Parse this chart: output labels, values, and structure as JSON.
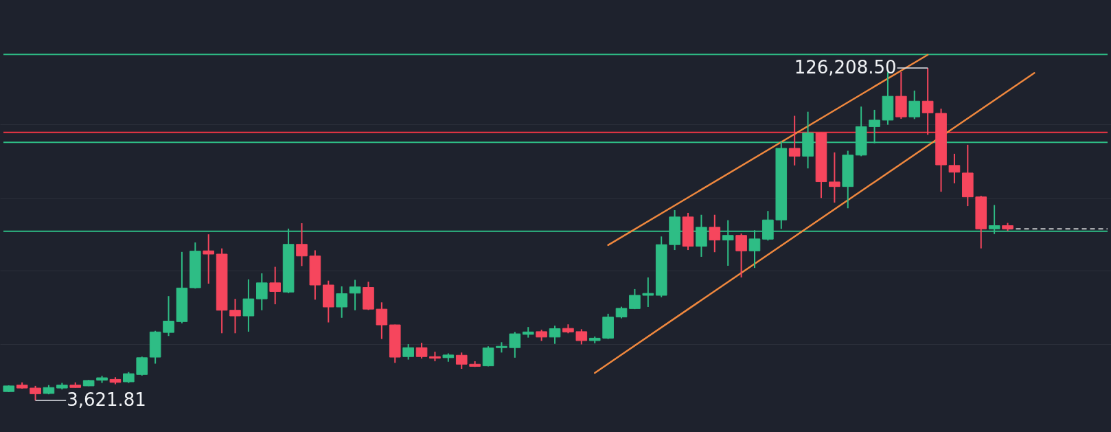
{
  "chart_data": {
    "type": "candlestick",
    "categories": [
      null,
      null,
      null,
      null,
      null,
      null,
      null,
      null,
      null,
      null,
      null,
      null,
      null,
      null,
      null,
      null,
      null,
      null,
      null,
      null,
      null,
      null,
      null,
      null,
      null,
      null,
      null,
      null,
      null,
      null,
      null,
      null,
      null,
      null,
      null,
      null,
      null,
      null,
      null,
      null,
      null,
      null,
      null,
      null,
      null,
      null,
      null,
      null,
      null,
      null,
      null,
      null,
      null,
      null,
      null,
      null,
      null,
      null,
      null,
      null,
      null,
      null,
      null,
      null,
      null,
      null,
      null,
      null,
      null,
      null,
      null,
      null,
      null,
      null,
      null,
      null,
      null,
      null,
      null,
      null,
      null,
      null,
      null
    ],
    "ohlc": [
      [
        6900,
        9200,
        6700,
        9000
      ],
      [
        9300,
        10300,
        8000,
        8200
      ],
      [
        8200,
        9000,
        3621.81,
        6100
      ],
      [
        6200,
        9300,
        5900,
        8400
      ],
      [
        8200,
        10100,
        7700,
        9300
      ],
      [
        9300,
        10300,
        8300,
        8400
      ],
      [
        9000,
        11200,
        8900,
        11000
      ],
      [
        11100,
        12700,
        10100,
        12000
      ],
      [
        11400,
        12200,
        9600,
        10300
      ],
      [
        10500,
        14100,
        10100,
        13500
      ],
      [
        13200,
        19800,
        12800,
        19400
      ],
      [
        19600,
        29300,
        17200,
        28900
      ],
      [
        28700,
        42100,
        27400,
        32900
      ],
      [
        32700,
        58400,
        32100,
        45100
      ],
      [
        45200,
        61900,
        44900,
        58700
      ],
      [
        58800,
        64900,
        46700,
        57600
      ],
      [
        57600,
        59700,
        28400,
        36900
      ],
      [
        36900,
        41100,
        28400,
        34800
      ],
      [
        34800,
        48300,
        29000,
        41100
      ],
      [
        41100,
        50500,
        36900,
        47000
      ],
      [
        47000,
        52900,
        39100,
        43800
      ],
      [
        43600,
        67000,
        43200,
        61200
      ],
      [
        61200,
        69000,
        53200,
        56900
      ],
      [
        56900,
        59000,
        40800,
        46200
      ],
      [
        46200,
        47800,
        32400,
        38100
      ],
      [
        38100,
        45700,
        34100,
        43000
      ],
      [
        43200,
        48100,
        36900,
        45500
      ],
      [
        45300,
        47400,
        37000,
        37300
      ],
      [
        37300,
        39800,
        26300,
        31500
      ],
      [
        31500,
        31600,
        17500,
        19600
      ],
      [
        19800,
        24400,
        18700,
        23100
      ],
      [
        23100,
        24900,
        19100,
        19800
      ],
      [
        19800,
        21600,
        18100,
        19200
      ],
      [
        19400,
        21000,
        17900,
        20400
      ],
      [
        20300,
        21300,
        15300,
        17000
      ],
      [
        17000,
        18100,
        16000,
        16200
      ],
      [
        16400,
        23600,
        16200,
        23000
      ],
      [
        23100,
        25100,
        21300,
        23600
      ],
      [
        23100,
        28900,
        19400,
        28200
      ],
      [
        28000,
        30700,
        26800,
        28900
      ],
      [
        29000,
        29700,
        25600,
        27000
      ],
      [
        27000,
        31200,
        24500,
        30100
      ],
      [
        30200,
        31700,
        28400,
        28900
      ],
      [
        29000,
        29900,
        24300,
        25700
      ],
      [
        25700,
        27200,
        24700,
        26600
      ],
      [
        26600,
        35600,
        26300,
        34400
      ],
      [
        34400,
        38200,
        33900,
        37600
      ],
      [
        37500,
        44700,
        37300,
        42400
      ],
      [
        42400,
        49000,
        38100,
        43100
      ],
      [
        42400,
        64100,
        41700,
        61100
      ],
      [
        61100,
        73800,
        59100,
        71300
      ],
      [
        71300,
        72800,
        59100,
        60500
      ],
      [
        60500,
        72100,
        56600,
        67500
      ],
      [
        67500,
        72100,
        58300,
        62800
      ],
      [
        62800,
        70100,
        53300,
        64500
      ],
      [
        64500,
        65200,
        49000,
        58800
      ],
      [
        58800,
        66400,
        52500,
        63200
      ],
      [
        63100,
        73500,
        62600,
        70200
      ],
      [
        70200,
        99400,
        66900,
        96600
      ],
      [
        96600,
        108600,
        90300,
        93700
      ],
      [
        93700,
        110100,
        89200,
        102300
      ],
      [
        102300,
        102500,
        78300,
        84300
      ],
      [
        84200,
        95100,
        76600,
        82500
      ],
      [
        82500,
        95700,
        74500,
        94100
      ],
      [
        94100,
        112000,
        93700,
        104600
      ],
      [
        104600,
        110800,
        98500,
        107000
      ],
      [
        107000,
        124700,
        105300,
        115800
      ],
      [
        115800,
        124700,
        107500,
        108200
      ],
      [
        108200,
        117900,
        107400,
        114000
      ],
      [
        114000,
        126208.5,
        101600,
        109700
      ],
      [
        109500,
        111200,
        80600,
        90500
      ],
      [
        90300,
        94600,
        83700,
        87800
      ],
      [
        87500,
        97900,
        75300,
        78700
      ],
      [
        78700,
        79100,
        59700,
        66900
      ],
      [
        66900,
        75700,
        65000,
        68100
      ],
      [
        68100,
        69100,
        66200,
        66900
      ],
      null,
      null,
      null,
      null,
      null,
      null,
      null
    ],
    "colors": [
      "#2ebd85",
      "#f6465d",
      "#f6465d",
      "#2ebd85",
      "#2ebd85",
      "#f6465d",
      "#2ebd85",
      "#2ebd85",
      "#f6465d",
      "#2ebd85",
      "#2ebd85",
      "#2ebd85",
      "#2ebd85",
      "#2ebd85",
      "#2ebd85",
      "#f6465d",
      "#f6465d",
      "#f6465d",
      "#2ebd85",
      "#2ebd85",
      "#f6465d",
      "#2ebd85",
      "#f6465d",
      "#f6465d",
      "#f6465d",
      "#2ebd85",
      "#2ebd85",
      "#f6465d",
      "#f6465d",
      "#f6465d",
      "#2ebd85",
      "#f6465d",
      "#f6465d",
      "#2ebd85",
      "#f6465d",
      "#f6465d",
      "#2ebd85",
      "#2ebd85",
      "#2ebd85",
      "#2ebd85",
      "#f6465d",
      "#2ebd85",
      "#f6465d",
      "#f6465d",
      "#2ebd85",
      "#2ebd85",
      "#2ebd85",
      "#2ebd85",
      "#2ebd85",
      "#2ebd85",
      "#2ebd85",
      "#f6465d",
      "#2ebd85",
      "#f6465d",
      "#2ebd85",
      "#f6465d",
      "#2ebd85",
      "#2ebd85",
      "#2ebd85",
      "#f6465d",
      "#2ebd85",
      "#f6465d",
      "#f6465d",
      "#2ebd85",
      "#2ebd85",
      "#2ebd85",
      "#2ebd85",
      "#f6465d",
      "#2ebd85",
      "#f6465d",
      "#f6465d",
      "#f6465d",
      "#f6465d",
      "#f6465d",
      "#2ebd85",
      "#f6465d",
      null,
      null,
      null,
      null,
      null,
      null,
      null
    ],
    "series": [
      {
        "type": "line",
        "color": "#f0883e",
        "values": [
          null,
          null,
          null,
          null,
          null,
          null,
          null,
          null,
          null,
          null,
          null,
          null,
          null,
          null,
          null,
          null,
          null,
          null,
          null,
          null,
          null,
          null,
          null,
          null,
          null,
          null,
          null,
          null,
          null,
          null,
          null,
          null,
          null,
          null,
          null,
          null,
          null,
          null,
          null,
          null,
          null,
          null,
          null,
          null,
          null,
          60900,
          null,
          null,
          null,
          null,
          null,
          null,
          null,
          null,
          null,
          null,
          null,
          null,
          null,
          null,
          null,
          null,
          null,
          null,
          null,
          null,
          null,
          null,
          null,
          131100,
          null,
          null,
          null,
          null,
          null,
          null,
          null,
          null,
          null,
          null,
          null,
          null,
          null
        ]
      },
      {
        "type": "line",
        "color": "#f0883e",
        "values": [
          null,
          null,
          null,
          null,
          null,
          null,
          null,
          null,
          null,
          null,
          null,
          null,
          null,
          null,
          null,
          null,
          null,
          null,
          null,
          null,
          null,
          null,
          null,
          null,
          null,
          null,
          null,
          null,
          null,
          null,
          null,
          null,
          null,
          null,
          null,
          null,
          null,
          null,
          null,
          null,
          null,
          null,
          null,
          null,
          13800,
          null,
          null,
          null,
          null,
          null,
          null,
          null,
          null,
          null,
          null,
          null,
          null,
          null,
          null,
          null,
          null,
          null,
          null,
          null,
          null,
          null,
          null,
          null,
          null,
          null,
          null,
          null,
          null,
          null,
          null,
          null,
          null,
          124400,
          null,
          null,
          null,
          null,
          null
        ]
      }
    ],
    "ylim": [
      -8000,
      151300
    ],
    "yticks": [
      {
        "value": 24500,
        "label": null
      },
      {
        "value": 51500,
        "label": null
      },
      {
        "value": 78000,
        "label": null
      },
      {
        "value": 105500,
        "label": null
      }
    ],
    "grid": "y",
    "ref_lines": [
      {
        "axis": "y",
        "value": 131200,
        "color": "#2ebd85"
      },
      {
        "axis": "y",
        "value": 102500,
        "color": "#f23645"
      },
      {
        "axis": "y",
        "value": 98800,
        "color": "#2ebd85"
      },
      {
        "axis": "y",
        "value": 66000,
        "color": "#2ebd85"
      },
      {
        "axis": "y",
        "value": 66900,
        "color": "#ffffff",
        "line_style": "dashed"
      }
    ],
    "annotations": [
      "126,208.50",
      "3,621.81"
    ]
  }
}
